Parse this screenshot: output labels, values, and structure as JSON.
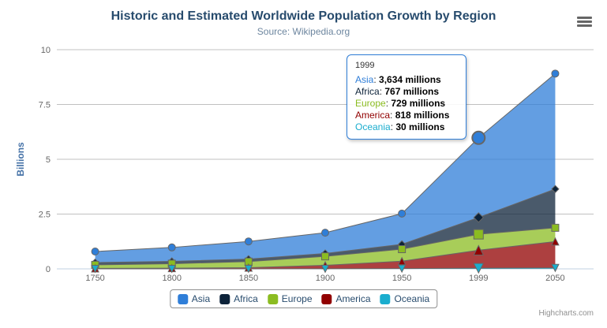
{
  "credits_label": "Highcharts.com",
  "export_menu_icon": "hamburger-icon",
  "chart_data": {
    "type": "area",
    "stacking": "normal",
    "title": "Historic and Estimated Worldwide Population Growth by Region",
    "subtitle": "Source: Wikipedia.org",
    "categories": [
      "1750",
      "1800",
      "1850",
      "1900",
      "1950",
      "1999",
      "2050"
    ],
    "series": [
      {
        "name": "Asia",
        "color": "#2f7ed8",
        "marker": "circle",
        "values": [
          502,
          635,
          809,
          947,
          1402,
          3634,
          5268
        ]
      },
      {
        "name": "Africa",
        "color": "#0d233a",
        "marker": "diamond",
        "values": [
          106,
          107,
          111,
          133,
          221,
          767,
          1766
        ]
      },
      {
        "name": "Europe",
        "color": "#8bbc21",
        "marker": "square",
        "values": [
          163,
          203,
          276,
          408,
          547,
          729,
          628
        ]
      },
      {
        "name": "America",
        "color": "#910000",
        "marker": "triangle",
        "values": [
          18,
          31,
          54,
          156,
          339,
          818,
          1201
        ]
      },
      {
        "name": "Oceania",
        "color": "#1aadce",
        "marker": "triangle-down",
        "values": [
          2,
          2,
          2,
          6,
          13,
          30,
          46
        ]
      }
    ],
    "values_unit": "millions",
    "xlabel": "",
    "ylabel": "Billions",
    "yticks": [
      0,
      2.5,
      5,
      7.5,
      10
    ],
    "ylim": [
      0,
      10
    ],
    "grid": "horizontal",
    "legend_position": "bottom",
    "hover_category": "1999",
    "line_color": "#666666",
    "gridline_color": "#C0C0C0",
    "xaxis_line_color": "#C0D0E0",
    "axis_label_color": "#666666",
    "ylabel_color": "#4572A7"
  },
  "tooltip": {
    "header": "1999",
    "separator": ": ",
    "border_color": "#2f7ed8",
    "rows": [
      {
        "label": "Asia",
        "color": "#2f7ed8",
        "value": "3,634 millions"
      },
      {
        "label": "Africa",
        "color": "#0d233a",
        "value": "767 millions"
      },
      {
        "label": "Europe",
        "color": "#8bbc21",
        "value": "729 millions"
      },
      {
        "label": "America",
        "color": "#910000",
        "value": "818 millions"
      },
      {
        "label": "Oceania",
        "color": "#1aadce",
        "value": "30 millions"
      }
    ]
  },
  "legend": {
    "items": [
      {
        "label": "Asia",
        "color": "#2f7ed8"
      },
      {
        "label": "Africa",
        "color": "#0d233a"
      },
      {
        "label": "Europe",
        "color": "#8bbc21"
      },
      {
        "label": "America",
        "color": "#910000"
      },
      {
        "label": "Oceania",
        "color": "#1aadce"
      }
    ]
  }
}
